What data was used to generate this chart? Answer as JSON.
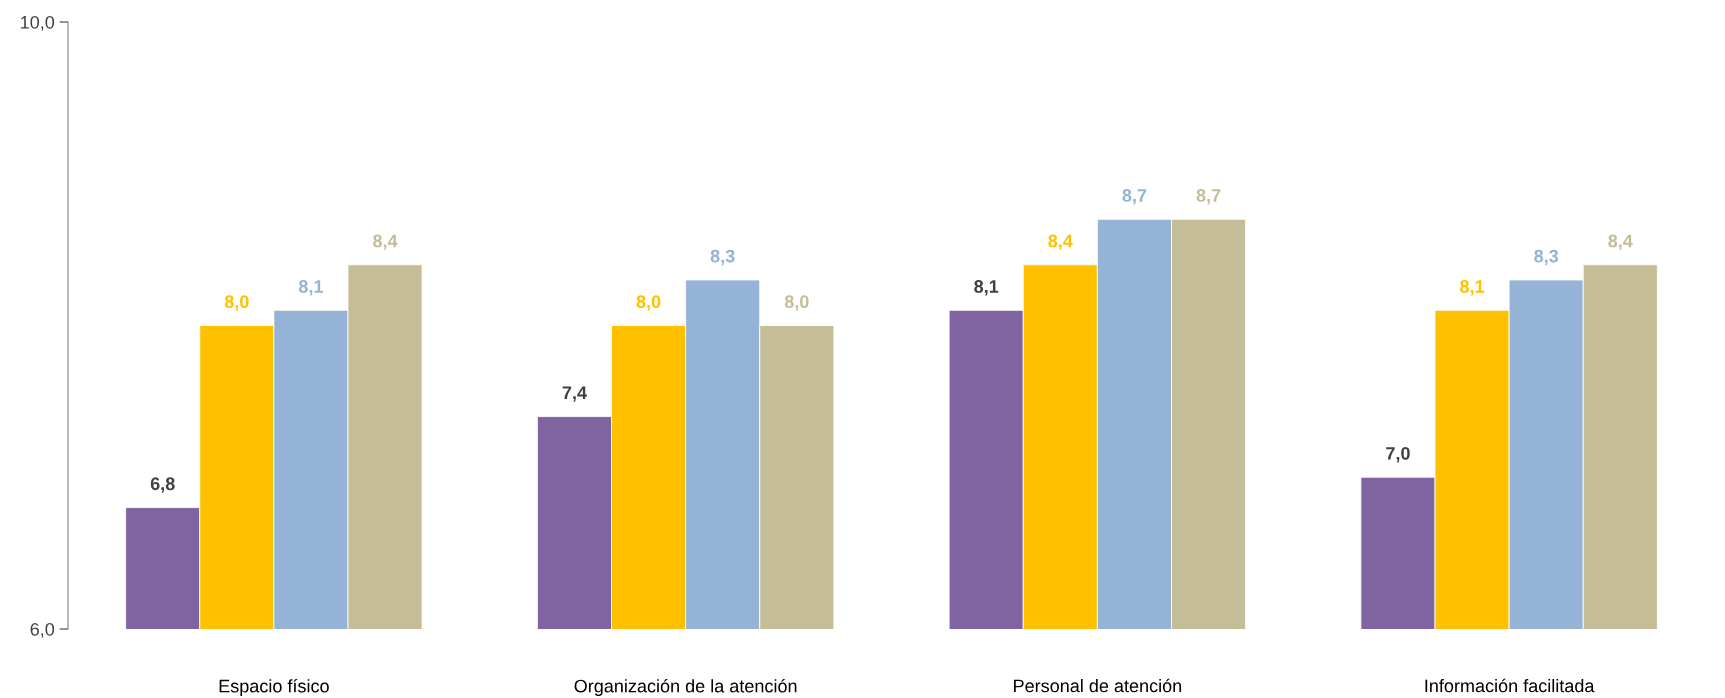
{
  "chart_data": {
    "type": "bar",
    "categories": [
      "Espacio físico",
      "Organización de la atención",
      "Personal de atención",
      "Información facilitada"
    ],
    "series": [
      {
        "color": "#8064a2",
        "values": [
          6.8,
          7.4,
          8.1,
          7.0
        ],
        "value_labels": [
          "6,8",
          "7,4",
          "8,1",
          "7,0"
        ]
      },
      {
        "color": "#ffc000",
        "values": [
          8.0,
          8.0,
          8.4,
          8.1
        ],
        "value_labels": [
          "8,0",
          "8,0",
          "8,4",
          "8,1"
        ]
      },
      {
        "color": "#95b3d7",
        "values": [
          8.1,
          8.3,
          8.7,
          8.3
        ],
        "value_labels": [
          "8,1",
          "8,3",
          "8,7",
          "8,3"
        ]
      },
      {
        "color": "#c4bd97",
        "values": [
          8.4,
          8.0,
          8.7,
          8.4
        ],
        "value_labels": [
          "8,4",
          "8,0",
          "8,7",
          "8,4"
        ]
      }
    ],
    "ylim": [
      6,
      10
    ],
    "yticks": [
      {
        "value": 6,
        "label": "6,0"
      },
      {
        "value": 10,
        "label": "10,0"
      }
    ],
    "grid": false,
    "legend": false
  }
}
